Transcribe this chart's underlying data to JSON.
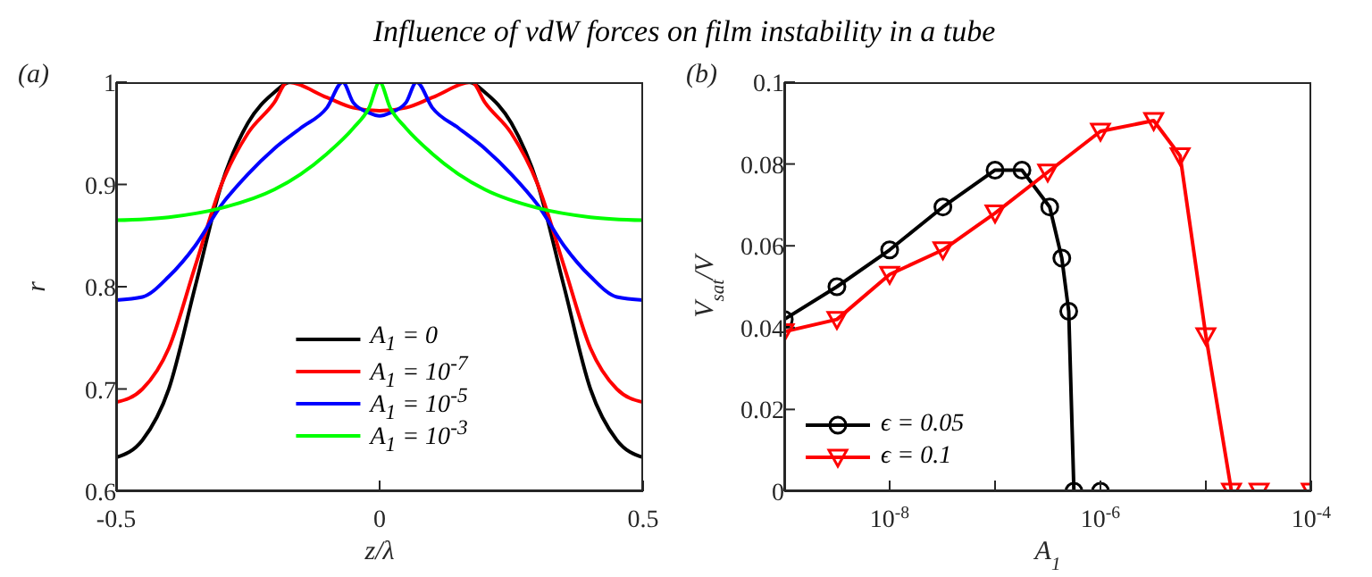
{
  "chart_data": [
    {
      "type": "line",
      "title": "Influence of vdW forces on film instability in a tube",
      "annotations": [
        "(a)"
      ],
      "xlabel": "z/λ",
      "ylabel": "r",
      "xlim": [
        -0.5,
        0.5
      ],
      "xticks": [
        -0.5,
        0,
        0.5
      ],
      "ylim": [
        0.6,
        1
      ],
      "yticks": [
        0.6,
        0.7,
        0.8,
        0.9,
        1
      ],
      "legend": "bottom",
      "marker": "none",
      "line_style": "solid",
      "series": [
        {
          "name": "A$_{1}$ = 0",
          "color": "#000000",
          "x": [
            -0.5,
            -0.45,
            -0.4,
            -0.35,
            -0.3,
            -0.25,
            -0.2,
            -0.17,
            0,
            0.17,
            0.2,
            0.25,
            0.3,
            0.35,
            0.4,
            0.45,
            0.5
          ],
          "values": [
            0.633,
            0.65,
            0.7,
            0.8,
            0.9,
            0.96,
            0.99,
            1,
            1,
            1,
            0.99,
            0.96,
            0.9,
            0.8,
            0.7,
            0.65,
            0.633
          ]
        },
        {
          "name": "A$_{1}$ = 10$^{-7}$",
          "color": "#ff0000",
          "x": [
            -0.5,
            -0.45,
            -0.4,
            -0.35,
            -0.3,
            -0.25,
            -0.2,
            -0.175,
            -0.1,
            -0.05,
            0,
            0.05,
            0.1,
            0.175,
            0.2,
            0.25,
            0.3,
            0.35,
            0.4,
            0.45,
            0.5
          ],
          "values": [
            0.687,
            0.7,
            0.74,
            0.82,
            0.9,
            0.95,
            0.98,
            1,
            0.985,
            0.975,
            0.972,
            0.975,
            0.985,
            1,
            0.98,
            0.95,
            0.9,
            0.82,
            0.74,
            0.7,
            0.687
          ]
        },
        {
          "name": "A$_{1}$ = 10$^{-5}$",
          "color": "#0000ff",
          "x": [
            -0.5,
            -0.45,
            -0.4,
            -0.35,
            -0.3,
            -0.25,
            -0.2,
            -0.15,
            -0.1,
            -0.07,
            -0.05,
            -0.02,
            0,
            0.02,
            0.05,
            0.07,
            0.1,
            0.15,
            0.2,
            0.25,
            0.3,
            0.35,
            0.4,
            0.45,
            0.5
          ],
          "values": [
            0.787,
            0.79,
            0.81,
            0.84,
            0.88,
            0.91,
            0.935,
            0.955,
            0.975,
            1,
            0.98,
            0.97,
            0.967,
            0.97,
            0.98,
            1,
            0.975,
            0.955,
            0.935,
            0.91,
            0.88,
            0.84,
            0.81,
            0.79,
            0.787
          ]
        },
        {
          "name": "A$_{1}$ = 10$^{-3}$",
          "color": "#00ff00",
          "x": [
            -0.5,
            -0.4,
            -0.3,
            -0.2,
            -0.15,
            -0.1,
            -0.05,
            -0.02,
            0,
            0.02,
            0.05,
            0.1,
            0.15,
            0.2,
            0.3,
            0.4,
            0.5
          ],
          "values": [
            0.865,
            0.868,
            0.877,
            0.895,
            0.91,
            0.93,
            0.955,
            0.975,
            1,
            0.975,
            0.955,
            0.93,
            0.91,
            0.895,
            0.877,
            0.868,
            0.865
          ]
        }
      ]
    },
    {
      "type": "line",
      "annotations": [
        "(b)"
      ],
      "xlabel": "A$_{1}$",
      "ylabel": "V$_{sat}$/V",
      "log": "x",
      "xlim": [
        1e-09,
        0.0001
      ],
      "xticks": [
        {
          "value": 1e-09,
          "label": null
        },
        {
          "value": 1e-08,
          "label": "10$^{-8}$"
        },
        {
          "value": 1e-07,
          "label": null
        },
        {
          "value": 1e-06,
          "label": "10$^{-6}$"
        },
        {
          "value": 1e-05,
          "label": null
        },
        {
          "value": 0.0001,
          "label": "10$^{-4}$"
        }
      ],
      "ylim": [
        0,
        0.1
      ],
      "yticks": [
        0,
        0.02,
        0.04,
        0.06,
        0.08,
        0.1
      ],
      "legend": "bottom left",
      "line_style": "solid",
      "series": [
        {
          "name": "ϵ = 0.05",
          "color": "#000000",
          "marker": "circle",
          "x": [
            1e-09,
            3.16e-09,
            1e-08,
            3.2e-08,
            1e-07,
            1.8e-07,
            3.3e-07,
            4.3e-07,
            5e-07,
            5.6e-07,
            1e-06
          ],
          "values": [
            0.042,
            0.05,
            0.059,
            0.0695,
            0.0785,
            0.0785,
            0.0695,
            0.057,
            0.044,
            0,
            0
          ]
        },
        {
          "name": "ϵ = 0.1",
          "color": "#ff0000",
          "marker": "triangle",
          "x": [
            1e-09,
            3.16e-09,
            1e-08,
            3.2e-08,
            1e-07,
            3.16e-07,
            1e-06,
            3.2e-06,
            5.7e-06,
            1e-05,
            1.75e-05,
            3.2e-05,
            0.0001
          ],
          "values": [
            0.039,
            0.042,
            0.053,
            0.059,
            0.068,
            0.078,
            0.088,
            0.0906,
            0.082,
            0.038,
            0,
            0,
            0
          ]
        }
      ]
    }
  ]
}
